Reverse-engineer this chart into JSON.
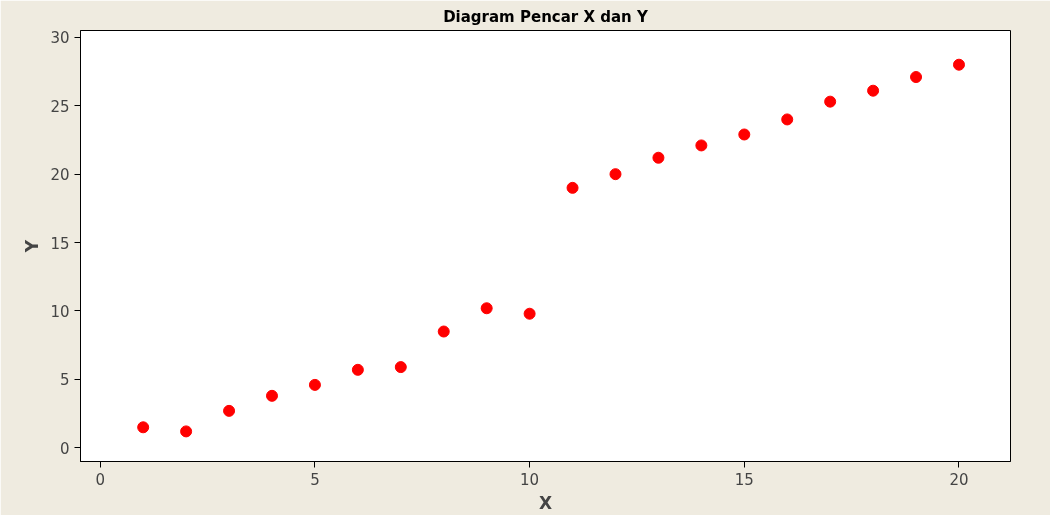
{
  "chart_data": {
    "type": "scatter",
    "title": "Diagram Pencar X dan Y",
    "xlabel": "X",
    "ylabel": "Y",
    "x": [
      1,
      2,
      3,
      4,
      5,
      6,
      7,
      8,
      9,
      10,
      11,
      12,
      13,
      14,
      15,
      16,
      17,
      18,
      19,
      20
    ],
    "series": [
      {
        "color": "#ff0000",
        "values": [
          1.5,
          1.2,
          2.7,
          3.8,
          4.6,
          5.7,
          5.9,
          8.5,
          10.2,
          9.8,
          19.0,
          20.0,
          21.2,
          22.1,
          22.9,
          24.0,
          25.3,
          26.1,
          27.1,
          28.0
        ]
      }
    ],
    "xlim": [
      -0.46,
      21.2
    ],
    "ylim": [
      -1,
      30.5
    ],
    "xticks": [
      0,
      5,
      10,
      15,
      20
    ],
    "yticks": [
      0,
      5,
      10,
      15,
      20,
      25,
      30
    ],
    "marker": "circle",
    "grid": false
  }
}
